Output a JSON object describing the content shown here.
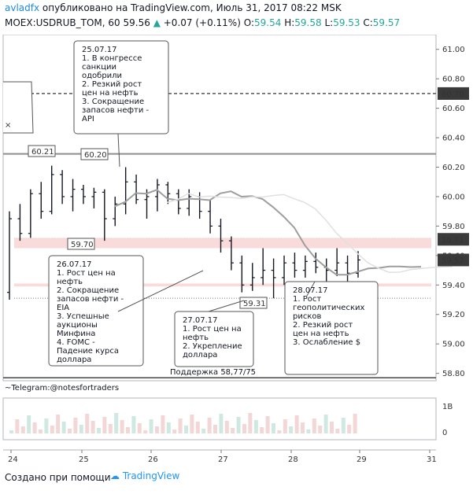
{
  "header": {
    "author": "avladfx",
    "published_text": "опубликовано на TradingView.com, Июль 31, 2017 08:22 MSK"
  },
  "symbol_line": {
    "symbol": "MOEX:USDRUB_TOM, 60",
    "last": "59.56",
    "change": "+0.07 (+0.11%)",
    "open_label": "O:",
    "open": "59.54",
    "high_label": "H:",
    "high": "59.58",
    "low_label": "L:",
    "low": "59.53",
    "close_label": "C:",
    "close": "59.57"
  },
  "footer": {
    "created_with": "Создано при помощи",
    "brand": "TradingView"
  },
  "colors": {
    "up": "#26a69a",
    "candle": "#131722",
    "zone": "#f8d7d7",
    "ma_dark": "#9e9e9e",
    "ma_light": "#e0e0e0"
  },
  "chart_data": {
    "type": "line",
    "price_axis": {
      "ticks": [
        "61.00",
        "60.80",
        "60.60",
        "60.40",
        "60.20",
        "60.00",
        "59.80",
        "59.60",
        "59.40",
        "59.20",
        "59.00",
        "58.80"
      ],
      "ylim": [
        58.75,
        61.1
      ],
      "badges": [
        {
          "value": 60.7,
          "text": "60.70",
          "style": "dark"
        },
        {
          "value": 59.71,
          "text": "59.71",
          "style": "dark"
        },
        {
          "value": 59.57,
          "text": "59.57",
          "style": "dark"
        }
      ]
    },
    "time_axis": {
      "labels": [
        "24",
        "25",
        "26",
        "27",
        "28",
        "29",
        "31"
      ],
      "xlim": [
        0,
        1
      ]
    },
    "volume_axis": {
      "ticks": [
        "1B",
        "0"
      ]
    },
    "levels": [
      {
        "value": 60.7,
        "style": "dashed"
      },
      {
        "value": 60.29,
        "style": "solid-gray"
      },
      {
        "value": 58.77,
        "style": "solid-dark"
      },
      {
        "value": 59.715,
        "style": "dotted"
      },
      {
        "value": 59.31,
        "style": "dotted"
      }
    ],
    "zones": [
      {
        "from": 59.65,
        "to": 59.72
      },
      {
        "from": 59.39,
        "to": 59.41
      }
    ],
    "price_labels": [
      {
        "text": "60.21",
        "value": 60.21
      },
      {
        "text": "60.20",
        "value": 60.2
      },
      {
        "text": "59.70",
        "value": 59.7
      },
      {
        "text": "59.31",
        "value": 59.31
      }
    ],
    "series_ohlc": [
      [
        59.35,
        59.9,
        59.3,
        59.85
      ],
      [
        59.85,
        59.95,
        59.7,
        59.75
      ],
      [
        59.75,
        60.05,
        59.72,
        60.02
      ],
      [
        60.02,
        60.1,
        59.85,
        59.9
      ],
      [
        59.9,
        60.21,
        59.88,
        60.15
      ],
      [
        60.15,
        60.18,
        59.95,
        60.0
      ],
      [
        60.0,
        60.12,
        59.9,
        60.05
      ],
      [
        60.05,
        60.08,
        59.95,
        60.0
      ],
      [
        60.0,
        60.06,
        59.92,
        60.03
      ],
      [
        60.03,
        60.05,
        59.7,
        59.85
      ],
      [
        59.85,
        60.0,
        59.8,
        59.95
      ],
      [
        59.95,
        60.2,
        59.88,
        60.1
      ],
      [
        60.1,
        60.15,
        59.95,
        59.98
      ],
      [
        59.98,
        60.05,
        59.85,
        60.0
      ],
      [
        60.0,
        60.12,
        59.9,
        60.08
      ],
      [
        60.08,
        60.1,
        59.95,
        60.02
      ],
      [
        60.02,
        60.05,
        59.88,
        59.92
      ],
      [
        59.92,
        60.05,
        59.87,
        60.0
      ],
      [
        60.0,
        60.03,
        59.85,
        59.9
      ],
      [
        59.9,
        59.98,
        59.75,
        59.8
      ],
      [
        59.8,
        59.85,
        59.62,
        59.7
      ],
      [
        59.7,
        59.73,
        59.5,
        59.55
      ],
      [
        59.55,
        59.6,
        59.35,
        59.4
      ],
      [
        59.4,
        59.55,
        59.36,
        59.45
      ],
      [
        59.45,
        59.65,
        59.4,
        59.5
      ],
      [
        59.5,
        59.58,
        59.31,
        59.45
      ],
      [
        59.45,
        59.6,
        59.4,
        59.55
      ],
      [
        59.55,
        59.62,
        59.45,
        59.5
      ],
      [
        59.5,
        59.6,
        59.45,
        59.56
      ],
      [
        59.56,
        59.62,
        59.48,
        59.52
      ],
      [
        59.52,
        59.58,
        59.4,
        59.5
      ],
      [
        59.5,
        59.65,
        59.46,
        59.55
      ],
      [
        59.55,
        59.6,
        59.42,
        59.48
      ],
      [
        59.48,
        59.63,
        59.45,
        59.57
      ]
    ],
    "annotations": [
      {
        "text": [
          "25.07.17",
          "1. В конгрессе",
          "санкции",
          "одобрили",
          "2. Резкий рост",
          "цен на нефть",
          "3. Сокращение",
          "запасов нефти -",
          "API"
        ]
      },
      {
        "text": [
          "26.07.17",
          "1. Рост цен на",
          "нефть",
          "2. Сокращение",
          "запасов нефти  -",
          "EIA",
          "3. Успешные",
          "аукционы",
          "Минфина",
          "4. FOMC -",
          "Падение курса",
          "доллара"
        ]
      },
      {
        "text": [
          "27.07.17",
          "1. Рост цен на",
          "нефть",
          "2. Укрепление",
          "доллара"
        ]
      },
      {
        "text": [
          "28.07.17",
          "1. Рост",
          "геополитических",
          "рисков",
          "2. Резкий рост",
          "цен на нефть",
          "3. Ослабление $"
        ]
      }
    ],
    "support_text": "Поддержка 58,77/75",
    "telegram_text": "~Telegram:@notesfortraders",
    "x_mark": "×"
  }
}
